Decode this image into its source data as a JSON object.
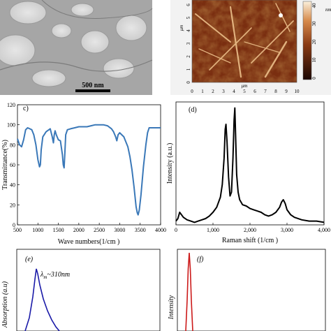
{
  "panel_a": {
    "scale_bar_label": "500 nm"
  },
  "panel_b": {
    "axis_unit": "μm",
    "x_ticks": [
      "0",
      "1",
      "2",
      "3",
      "4",
      "5",
      "6",
      "7",
      "8",
      "9",
      "10"
    ],
    "y_ticks": [
      "0",
      "1",
      "2",
      "3",
      "4",
      "5",
      "6"
    ],
    "colorbar_ticks": [
      "40",
      "30",
      "20",
      "10",
      "0"
    ],
    "colorbar_unit": "nm",
    "colors": {
      "dark": "#3a1206",
      "mid": "#a24a1c",
      "light": "#f4d9b8"
    }
  },
  "chart_data": [
    {
      "id": "c",
      "panel_label": "c)",
      "type": "line",
      "xlabel": "Wave numbers(1/cm )",
      "ylabel": "Transmittance(%)",
      "xlim": [
        500,
        4000
      ],
      "ylim": [
        0,
        120
      ],
      "x_ticks": [
        500,
        1000,
        1500,
        2000,
        2500,
        3000,
        3500,
        4000
      ],
      "y_ticks": [
        0,
        20,
        40,
        60,
        80,
        100,
        120
      ],
      "color": "#3a78b8",
      "series": [
        {
          "x": [
            500,
            550,
            600,
            650,
            700,
            750,
            800,
            850,
            900,
            950,
            1000,
            1040,
            1060,
            1080,
            1120,
            1200,
            1300,
            1350,
            1380,
            1400,
            1420,
            1450,
            1500,
            1550,
            1600,
            1620,
            1640,
            1660,
            1680,
            1720,
            1800,
            1900,
            2000,
            2100,
            2200,
            2300,
            2400,
            2500,
            2600,
            2700,
            2800,
            2850,
            2900,
            2930,
            2960,
            3000,
            3100,
            3200,
            3250,
            3300,
            3350,
            3400,
            3430,
            3450,
            3480,
            3520,
            3580,
            3640,
            3680,
            3720,
            3800,
            3900,
            4000
          ],
          "y": [
            86,
            80,
            78,
            85,
            95,
            97,
            96,
            95,
            90,
            80,
            65,
            58,
            60,
            75,
            88,
            93,
            96,
            88,
            82,
            90,
            94,
            90,
            85,
            84,
            70,
            60,
            57,
            72,
            90,
            95,
            96,
            97,
            98,
            98,
            98,
            99,
            100,
            100,
            100,
            99,
            96,
            93,
            88,
            84,
            90,
            92,
            88,
            78,
            68,
            55,
            38,
            18,
            12,
            10,
            15,
            30,
            58,
            80,
            92,
            97,
            97,
            97,
            97
          ]
        }
      ]
    },
    {
      "id": "d",
      "panel_label": "(d)",
      "type": "line",
      "xlabel": "Raman shift (1/cm )",
      "ylabel": "Intensity (a.u.)",
      "xlim": [
        0,
        4000
      ],
      "x_ticks": [
        0,
        1000,
        2000,
        3000,
        4000
      ],
      "x_tick_labels": [
        "0",
        "1,000",
        "2,000",
        "3,000",
        "4,000"
      ],
      "color": "#000000",
      "series": [
        {
          "x": [
            0,
            50,
            100,
            200,
            300,
            400,
            500,
            600,
            700,
            800,
            900,
            1000,
            1100,
            1200,
            1250,
            1300,
            1330,
            1350,
            1380,
            1420,
            1460,
            1500,
            1540,
            1570,
            1590,
            1610,
            1640,
            1680,
            1720,
            1800,
            1900,
            2000,
            2100,
            2200,
            2300,
            2400,
            2500,
            2600,
            2700,
            2800,
            2850,
            2900,
            2950,
            3000,
            3100,
            3200,
            3400,
            3600,
            3800,
            4000
          ],
          "y": [
            5,
            7,
            12,
            8,
            6,
            5,
            4,
            5,
            6,
            7,
            9,
            12,
            16,
            24,
            34,
            55,
            78,
            82,
            68,
            40,
            25,
            28,
            55,
            85,
            95,
            75,
            42,
            28,
            22,
            18,
            17,
            15,
            14,
            13,
            12,
            10,
            9,
            10,
            12,
            16,
            20,
            22,
            19,
            14,
            10,
            8,
            6,
            5,
            5,
            4
          ]
        }
      ]
    },
    {
      "id": "e",
      "panel_label": "(e)",
      "type": "line",
      "ylabel": "Absorption (a.u)",
      "annotation_symbol": "λ",
      "annotation_sub": "m",
      "annotation_text": "~310nm",
      "color": "#1a1aa8"
    },
    {
      "id": "f",
      "panel_label": "(f)",
      "type": "line",
      "ylabel": "Intensity",
      "color": "#cc1a1a"
    }
  ]
}
